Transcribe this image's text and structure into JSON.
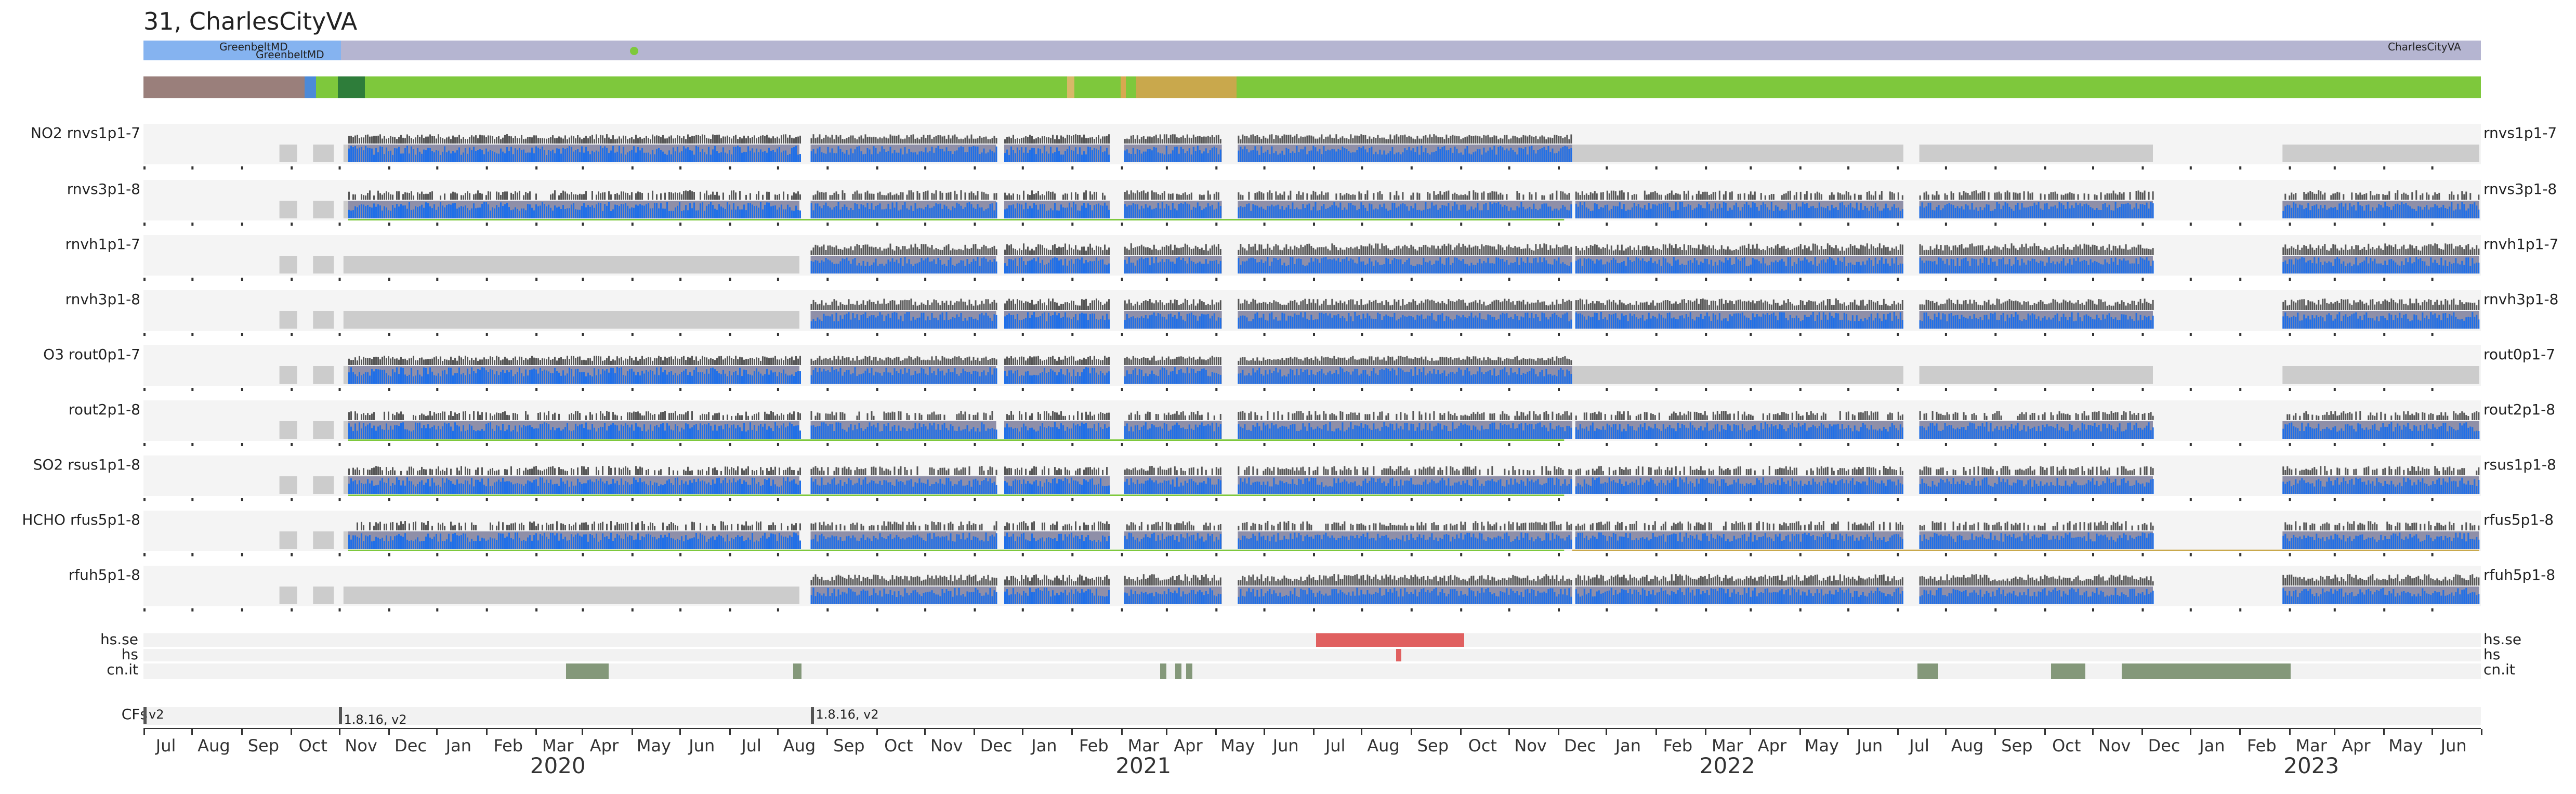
{
  "title": "31, CharlesCityVA",
  "site_bar": {
    "left_label_1": "GreenbeltMD",
    "left_label_2": "GreenbeltMD",
    "right_label": "CharlesCityVA"
  },
  "rows": [
    {
      "gas": "NO2",
      "name": "rnvs1p1-7",
      "style": "a",
      "right_label": "rnvs1p1-7"
    },
    {
      "gas": "",
      "name": "rnvs3p1-8",
      "style": "b",
      "right_label": "rnvs3p1-8"
    },
    {
      "gas": "",
      "name": "rnvh1p1-7",
      "style": "c",
      "right_label": "rnvh1p1-7"
    },
    {
      "gas": "",
      "name": "rnvh3p1-8",
      "style": "d",
      "right_label": "rnvh3p1-8"
    },
    {
      "gas": "O3",
      "name": "rout0p1-7",
      "style": "a",
      "right_label": "rout0p1-7"
    },
    {
      "gas": "",
      "name": "rout2p1-8",
      "style": "b",
      "right_label": "rout2p1-8"
    },
    {
      "gas": "SO2",
      "name": "rsus1p1-8",
      "style": "b",
      "right_label": "rsus1p1-8"
    },
    {
      "gas": "HCHO",
      "name": "rfus5p1-8",
      "style": "b",
      "right_label": "rfus5p1-8"
    },
    {
      "gas": "",
      "name": "rfuh5p1-8",
      "style": "d",
      "right_label": "rfuh5p1-8"
    }
  ],
  "status_rows": {
    "hs_se": "hs.se",
    "hs": "hs",
    "cn_it": "cn.it"
  },
  "cfs": {
    "label": "CFs",
    "entries": [
      {
        "date": "2019-06-01",
        "text": "v2"
      },
      {
        "date": "2019-10-01",
        "text": "1.8.16, v2"
      },
      {
        "date": "2020-07-22",
        "text": "1.8.16, v2"
      }
    ]
  },
  "months": [
    "Jul",
    "Aug",
    "Sep",
    "Oct",
    "Nov",
    "Dec",
    "Jan",
    "Feb",
    "Mar",
    "Apr",
    "May",
    "Jun",
    "Jul",
    "Aug",
    "Sep",
    "Oct",
    "Nov",
    "Dec",
    "Jan",
    "Feb",
    "Mar",
    "Apr",
    "May",
    "Jun",
    "Jul",
    "Aug",
    "Sep",
    "Oct",
    "Nov",
    "Dec",
    "Jan",
    "Feb",
    "Mar",
    "Apr",
    "May",
    "Jun",
    "Jul",
    "Aug",
    "Sep",
    "Oct",
    "Nov",
    "Dec",
    "Jan",
    "Feb",
    "Mar",
    "Apr",
    "May",
    "Jun"
  ],
  "years": [
    "2020",
    "2021",
    "2022",
    "2023"
  ],
  "axis": {
    "start": "2019-06-01",
    "end": "2023-06-01"
  },
  "colors": {
    "blue": "#1f6fe8",
    "dark": "#555555",
    "grey_bg": "#cccccc",
    "green": "#7ec83c",
    "brown": "#9a7f7b",
    "gold": "#c9a84c",
    "red": "#e06060",
    "sage": "#84987a",
    "lavender": "#b5b5d1",
    "lightblue": "#85b3f0"
  }
}
